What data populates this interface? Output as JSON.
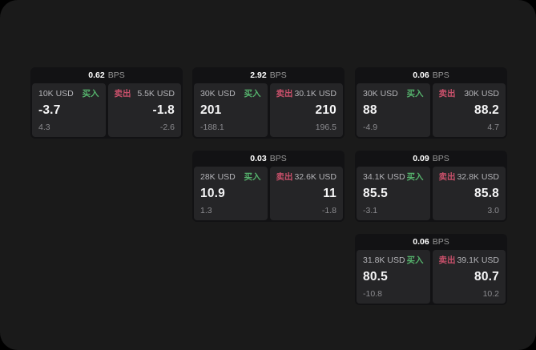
{
  "theme": {
    "outer_bg": "#000000",
    "surface_bg": "#1a1a1a",
    "card_bg": "#121214",
    "panel_bg": "#252527",
    "value_color": "#f5f5f6",
    "muted_color": "#8b8b8f",
    "size_color": "#b4b4b8",
    "buy_color": "#55b26c",
    "sell_color": "#c8506a"
  },
  "labels": {
    "unit": "BPS",
    "buy": "买入",
    "sell": "卖出"
  },
  "cards": [
    {
      "col": 0,
      "row": 0,
      "bps": "0.62",
      "buy": {
        "size": "10K USD",
        "value": "-3.7",
        "delta": "4.3"
      },
      "sell": {
        "size": "5.5K USD",
        "value": "-1.8",
        "delta": "-2.6"
      }
    },
    {
      "col": 1,
      "row": 0,
      "bps": "2.92",
      "buy": {
        "size": "30K USD",
        "value": "201",
        "delta": "-188.1"
      },
      "sell": {
        "size": "30.1K USD",
        "value": "210",
        "delta": "196.5"
      }
    },
    {
      "col": 2,
      "row": 0,
      "bps": "0.06",
      "buy": {
        "size": "30K USD",
        "value": "88",
        "delta": "-4.9"
      },
      "sell": {
        "size": "30K USD",
        "value": "88.2",
        "delta": "4.7"
      }
    },
    {
      "col": 1,
      "row": 1,
      "bps": "0.03",
      "buy": {
        "size": "28K USD",
        "value": "10.9",
        "delta": "1.3"
      },
      "sell": {
        "size": "32.6K USD",
        "value": "11",
        "delta": "-1.8"
      }
    },
    {
      "col": 2,
      "row": 1,
      "bps": "0.09",
      "buy": {
        "size": "34.1K USD",
        "value": "85.5",
        "delta": "-3.1"
      },
      "sell": {
        "size": "32.8K USD",
        "value": "85.8",
        "delta": "3.0"
      }
    },
    {
      "col": 2,
      "row": 2,
      "bps": "0.06",
      "buy": {
        "size": "31.8K USD",
        "value": "80.5",
        "delta": "-10.8"
      },
      "sell": {
        "size": "39.1K USD",
        "value": "80.7",
        "delta": "10.2"
      }
    }
  ]
}
